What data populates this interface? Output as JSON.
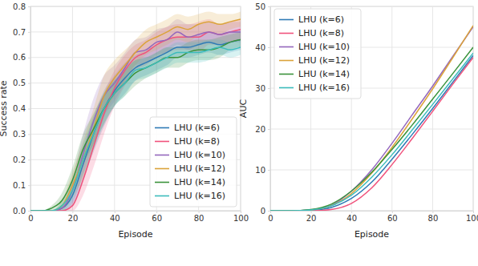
{
  "chart_data": [
    {
      "type": "line",
      "xlabel": "Episode",
      "ylabel": "Success rate",
      "x": [
        0,
        5,
        10,
        15,
        20,
        25,
        30,
        35,
        40,
        45,
        50,
        55,
        60,
        65,
        70,
        75,
        80,
        85,
        90,
        95,
        100
      ],
      "xlim": [
        0,
        100
      ],
      "xticks": [
        0,
        20,
        40,
        60,
        80,
        100
      ],
      "ylim": [
        0,
        0.8
      ],
      "yticks": [
        {
          "value": 0,
          "label": "0.0"
        },
        0.1,
        0.2,
        0.3,
        0.4,
        0.5,
        0.6,
        0.7,
        0.8
      ],
      "grid": true,
      "legend": "lower right",
      "series": [
        {
          "name": "LHU (k=6)",
          "color": "#2f7bb6",
          "values": [
            0,
            0,
            0,
            0.01,
            0.06,
            0.18,
            0.3,
            0.4,
            0.47,
            0.52,
            0.56,
            0.58,
            0.6,
            0.62,
            0.64,
            0.64,
            0.65,
            0.66,
            0.65,
            0.66,
            0.67
          ],
          "error": [
            0,
            0,
            0,
            0.01,
            0.04,
            0.06,
            0.07,
            0.07,
            0.06,
            0.06,
            0.05,
            0.05,
            0.05,
            0.05,
            0.04,
            0.04,
            0.04,
            0.04,
            0.04,
            0.04,
            0.04
          ]
        },
        {
          "name": "LHU (k=8)",
          "color": "#f0527c",
          "values": [
            0,
            0,
            0,
            0,
            0.02,
            0.12,
            0.25,
            0.38,
            0.48,
            0.55,
            0.6,
            0.62,
            0.65,
            0.67,
            0.68,
            0.68,
            0.68,
            0.7,
            0.69,
            0.7,
            0.71
          ],
          "error": [
            0,
            0,
            0,
            0,
            0.02,
            0.06,
            0.08,
            0.08,
            0.07,
            0.06,
            0.05,
            0.05,
            0.05,
            0.05,
            0.05,
            0.05,
            0.06,
            0.05,
            0.04,
            0.04,
            0.04
          ]
        },
        {
          "name": "LHU (k=10)",
          "color": "#9467bd",
          "values": [
            0,
            0,
            0,
            0.01,
            0.08,
            0.22,
            0.35,
            0.45,
            0.5,
            0.56,
            0.62,
            0.63,
            0.66,
            0.67,
            0.7,
            0.68,
            0.69,
            0.7,
            0.69,
            0.7,
            0.7
          ],
          "error": [
            0,
            0,
            0,
            0.01,
            0.05,
            0.08,
            0.09,
            0.08,
            0.07,
            0.06,
            0.05,
            0.05,
            0.05,
            0.05,
            0.05,
            0.05,
            0.04,
            0.04,
            0.04,
            0.04,
            0.04
          ]
        },
        {
          "name": "LHU (k=12)",
          "color": "#dba33a",
          "values": [
            0,
            0,
            0,
            0.02,
            0.1,
            0.2,
            0.32,
            0.45,
            0.52,
            0.57,
            0.62,
            0.66,
            0.68,
            0.7,
            0.72,
            0.71,
            0.73,
            0.74,
            0.73,
            0.74,
            0.75
          ],
          "error": [
            0,
            0,
            0,
            0.02,
            0.05,
            0.07,
            0.08,
            0.08,
            0.07,
            0.06,
            0.05,
            0.05,
            0.05,
            0.05,
            0.05,
            0.05,
            0.04,
            0.04,
            0.04,
            0.03,
            0.03
          ]
        },
        {
          "name": "LHU (k=14)",
          "color": "#3a923a",
          "values": [
            0,
            0,
            0.01,
            0.04,
            0.12,
            0.24,
            0.32,
            0.4,
            0.46,
            0.5,
            0.54,
            0.56,
            0.58,
            0.6,
            0.6,
            0.62,
            0.63,
            0.63,
            0.64,
            0.66,
            0.67
          ],
          "error": [
            0,
            0,
            0.01,
            0.03,
            0.05,
            0.06,
            0.06,
            0.06,
            0.05,
            0.05,
            0.05,
            0.04,
            0.04,
            0.04,
            0.04,
            0.04,
            0.04,
            0.04,
            0.04,
            0.03,
            0.03
          ]
        },
        {
          "name": "LHU (k=16)",
          "color": "#3cbcbc",
          "values": [
            0,
            0,
            0,
            0.02,
            0.08,
            0.2,
            0.3,
            0.4,
            0.46,
            0.5,
            0.55,
            0.56,
            0.58,
            0.6,
            0.62,
            0.62,
            0.62,
            0.63,
            0.64,
            0.63,
            0.64
          ],
          "error": [
            0,
            0,
            0,
            0.02,
            0.04,
            0.06,
            0.06,
            0.06,
            0.05,
            0.05,
            0.04,
            0.04,
            0.04,
            0.04,
            0.04,
            0.04,
            0.04,
            0.04,
            0.03,
            0.03,
            0.03
          ]
        }
      ]
    },
    {
      "type": "line",
      "xlabel": "Episode",
      "ylabel": "AUC",
      "x": [
        0,
        10,
        20,
        30,
        40,
        50,
        60,
        70,
        80,
        90,
        100
      ],
      "xlim": [
        0,
        100
      ],
      "xticks": [
        0,
        20,
        40,
        60,
        80,
        100
      ],
      "ylim": [
        0,
        50
      ],
      "yticks": [
        0,
        10,
        20,
        30,
        40,
        50
      ],
      "grid": true,
      "legend": "upper left",
      "series": [
        {
          "name": "LHU (k=6)",
          "color": "#2f7bb6",
          "values": [
            0,
            0,
            0.1,
            0.8,
            3,
            7,
            12.6,
            18.7,
            25,
            31.5,
            38
          ]
        },
        {
          "name": "LHU (k=8)",
          "color": "#f0527c",
          "values": [
            0,
            0,
            0,
            0.3,
            1.8,
            5.6,
            11.3,
            17.7,
            24.3,
            31,
            37.5
          ]
        },
        {
          "name": "LHU (k=10)",
          "color": "#9467bd",
          "values": [
            0,
            0,
            0.2,
            1.3,
            4.8,
            10,
            16.5,
            23.5,
            30.5,
            37.8,
            45
          ]
        },
        {
          "name": "LHU (k=12)",
          "color": "#dba33a",
          "values": [
            0,
            0,
            0.2,
            1.2,
            4.2,
            9.2,
            15.5,
            22.5,
            29.8,
            37.5,
            45.3
          ]
        },
        {
          "name": "LHU (k=14)",
          "color": "#3a923a",
          "values": [
            0,
            0,
            0.3,
            1.6,
            4.8,
            9.4,
            15,
            21,
            27.3,
            33.6,
            40
          ]
        },
        {
          "name": "LHU (k=16)",
          "color": "#3cbcbc",
          "values": [
            0,
            0,
            0.2,
            1.2,
            3.8,
            8.2,
            13.7,
            19.8,
            26,
            32.3,
            38.6
          ]
        }
      ]
    }
  ]
}
